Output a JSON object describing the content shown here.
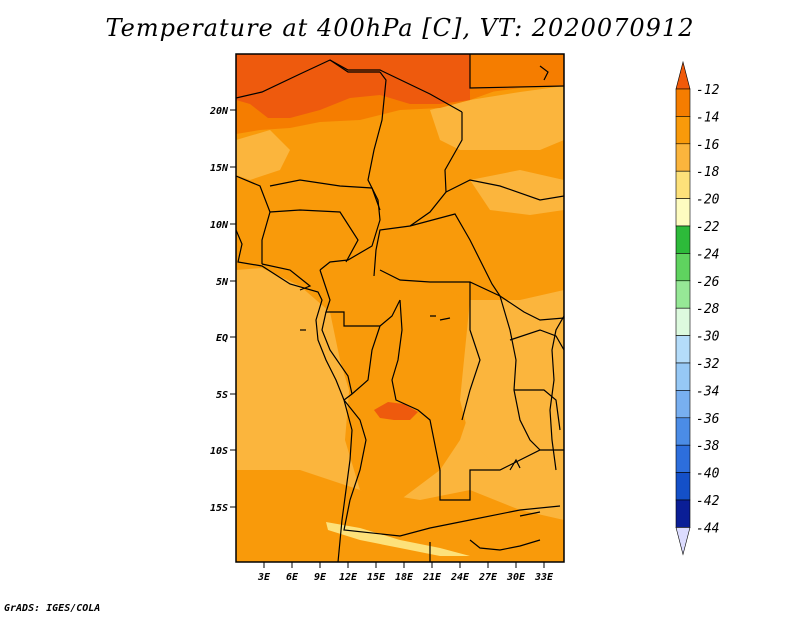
{
  "title": "Temperature at 400hPa [C], VT: 2020070912",
  "credit": "GrADS: IGES/COLA",
  "lat_labels": [
    "20N",
    "15N",
    "10N",
    "5N",
    "EQ",
    "5S",
    "10S",
    "15S"
  ],
  "lon_labels": [
    "3E",
    "6E",
    "9E",
    "12E",
    "15E",
    "18E",
    "21E",
    "24E",
    "27E",
    "30E",
    "33E"
  ],
  "colorbar": {
    "levels": [
      "-12",
      "-14",
      "-16",
      "-18",
      "-20",
      "-22",
      "-24",
      "-26",
      "-28",
      "-30",
      "-32",
      "-34",
      "-36",
      "-38",
      "-40",
      "-42",
      "-44"
    ],
    "colors": [
      "#f05a0a",
      "#f57d00",
      "#f99a0a",
      "#fbb53d",
      "#fde17a",
      "#fefcc0",
      "#2dba3a",
      "#5fd35f",
      "#96e896",
      "#ddfade",
      "#b4dcfa",
      "#96c8f5",
      "#78aff0",
      "#4b8ce6",
      "#2d6edc",
      "#1450c8",
      "#0a1e96",
      "#dcdcff"
    ]
  },
  "colors": {
    "warm_red": "#ee5a0d",
    "deep_orange": "#f57d00",
    "orange": "#f99a0a",
    "light_orange": "#fbb53d",
    "yellow": "#fde17a"
  }
}
